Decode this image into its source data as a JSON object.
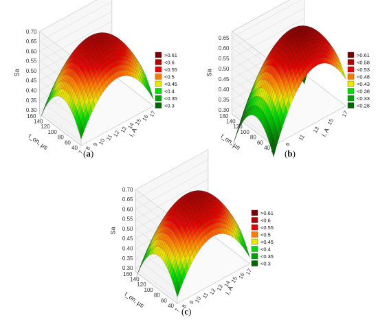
{
  "chart_data": [
    {
      "type": "surface",
      "caption": "a",
      "zlabel": "Sa",
      "ylabel": "t_on, µs",
      "xlabel": "I, A",
      "zticks": [
        "0.70",
        "0.65",
        "0.60",
        "0.55",
        "0.50",
        "0.45",
        "0.40",
        "0.35",
        "0.30"
      ],
      "zlim": [
        0.28,
        0.7
      ],
      "yticks": [
        "160",
        "140",
        "120",
        "100",
        "80",
        "60",
        "40"
      ],
      "xticks": [
        "7",
        "8",
        "9",
        "10",
        "11",
        "12",
        "13",
        "14",
        "15",
        "16",
        "17"
      ],
      "legend": [
        {
          "label": ">0.61",
          "color": "#7a0000"
        },
        {
          "label": "<0.6",
          "color": "#b00000"
        },
        {
          "label": "<0.55",
          "color": "#e60000"
        },
        {
          "label": "<0.5",
          "color": "#ff7a00"
        },
        {
          "label": "<0.45",
          "color": "#e8e800"
        },
        {
          "label": "<0.4",
          "color": "#00dd00"
        },
        {
          "label": "<0.35",
          "color": "#00a000"
        },
        {
          "label": "<0.3",
          "color": "#006600"
        }
      ],
      "surface": {
        "peak": 0.66,
        "corner_min": 0.31,
        "ridge_skew": 0.0
      }
    },
    {
      "type": "surface",
      "caption": "b",
      "zlabel": "Sa",
      "ylabel": "t_on, µs",
      "xlabel": "I, A",
      "zticks": [
        "0.65",
        "0.60",
        "0.55",
        "0.50",
        "0.45",
        "0.40",
        "0.35",
        "0.30"
      ],
      "zlim": [
        0.28,
        0.68
      ],
      "yticks": [
        "160",
        "140",
        "120",
        "100",
        "80",
        "60",
        "40"
      ],
      "xticks": [
        "7",
        "9",
        "11",
        "13",
        "15",
        "17"
      ],
      "legend": [
        {
          "label": ">0.61",
          "color": "#7a0000"
        },
        {
          "label": "<0.58",
          "color": "#b00000"
        },
        {
          "label": "<0.53",
          "color": "#e60000"
        },
        {
          "label": "<0.48",
          "color": "#ff7a00"
        },
        {
          "label": "<0.43",
          "color": "#e8e800"
        },
        {
          "label": "<0.38",
          "color": "#00dd00"
        },
        {
          "label": "<0.33",
          "color": "#00a000"
        },
        {
          "label": "<0.28",
          "color": "#006600"
        }
      ],
      "surface": {
        "peak": 0.67,
        "corner_min": 0.29,
        "ridge_skew": 0.35
      }
    },
    {
      "type": "surface",
      "caption": "c",
      "zlabel": "Sa",
      "ylabel": "t_on, µs",
      "xlabel": "I, A",
      "zticks": [
        "0.70",
        "0.65",
        "0.60",
        "0.55",
        "0.50",
        "0.45",
        "0.40",
        "0.35",
        "0.30"
      ],
      "zlim": [
        0.28,
        0.7
      ],
      "yticks": [
        "160",
        "140",
        "120",
        "100",
        "80",
        "60",
        "40"
      ],
      "xticks": [
        "7",
        "8",
        "9",
        "10",
        "11",
        "12",
        "13",
        "14",
        "15",
        "16",
        "17"
      ],
      "legend": [
        {
          "label": ">0.61",
          "color": "#7a0000"
        },
        {
          "label": "<0.6",
          "color": "#b00000"
        },
        {
          "label": "<0.55",
          "color": "#e60000"
        },
        {
          "label": "<0.5",
          "color": "#ff7a00"
        },
        {
          "label": "<0.45",
          "color": "#e8e800"
        },
        {
          "label": "<0.4",
          "color": "#00dd00"
        },
        {
          "label": "<0.35",
          "color": "#00a000"
        },
        {
          "label": "<0.3",
          "color": "#006600"
        }
      ],
      "surface": {
        "peak": 0.66,
        "corner_min": 0.31,
        "ridge_skew": 0.0
      }
    }
  ]
}
